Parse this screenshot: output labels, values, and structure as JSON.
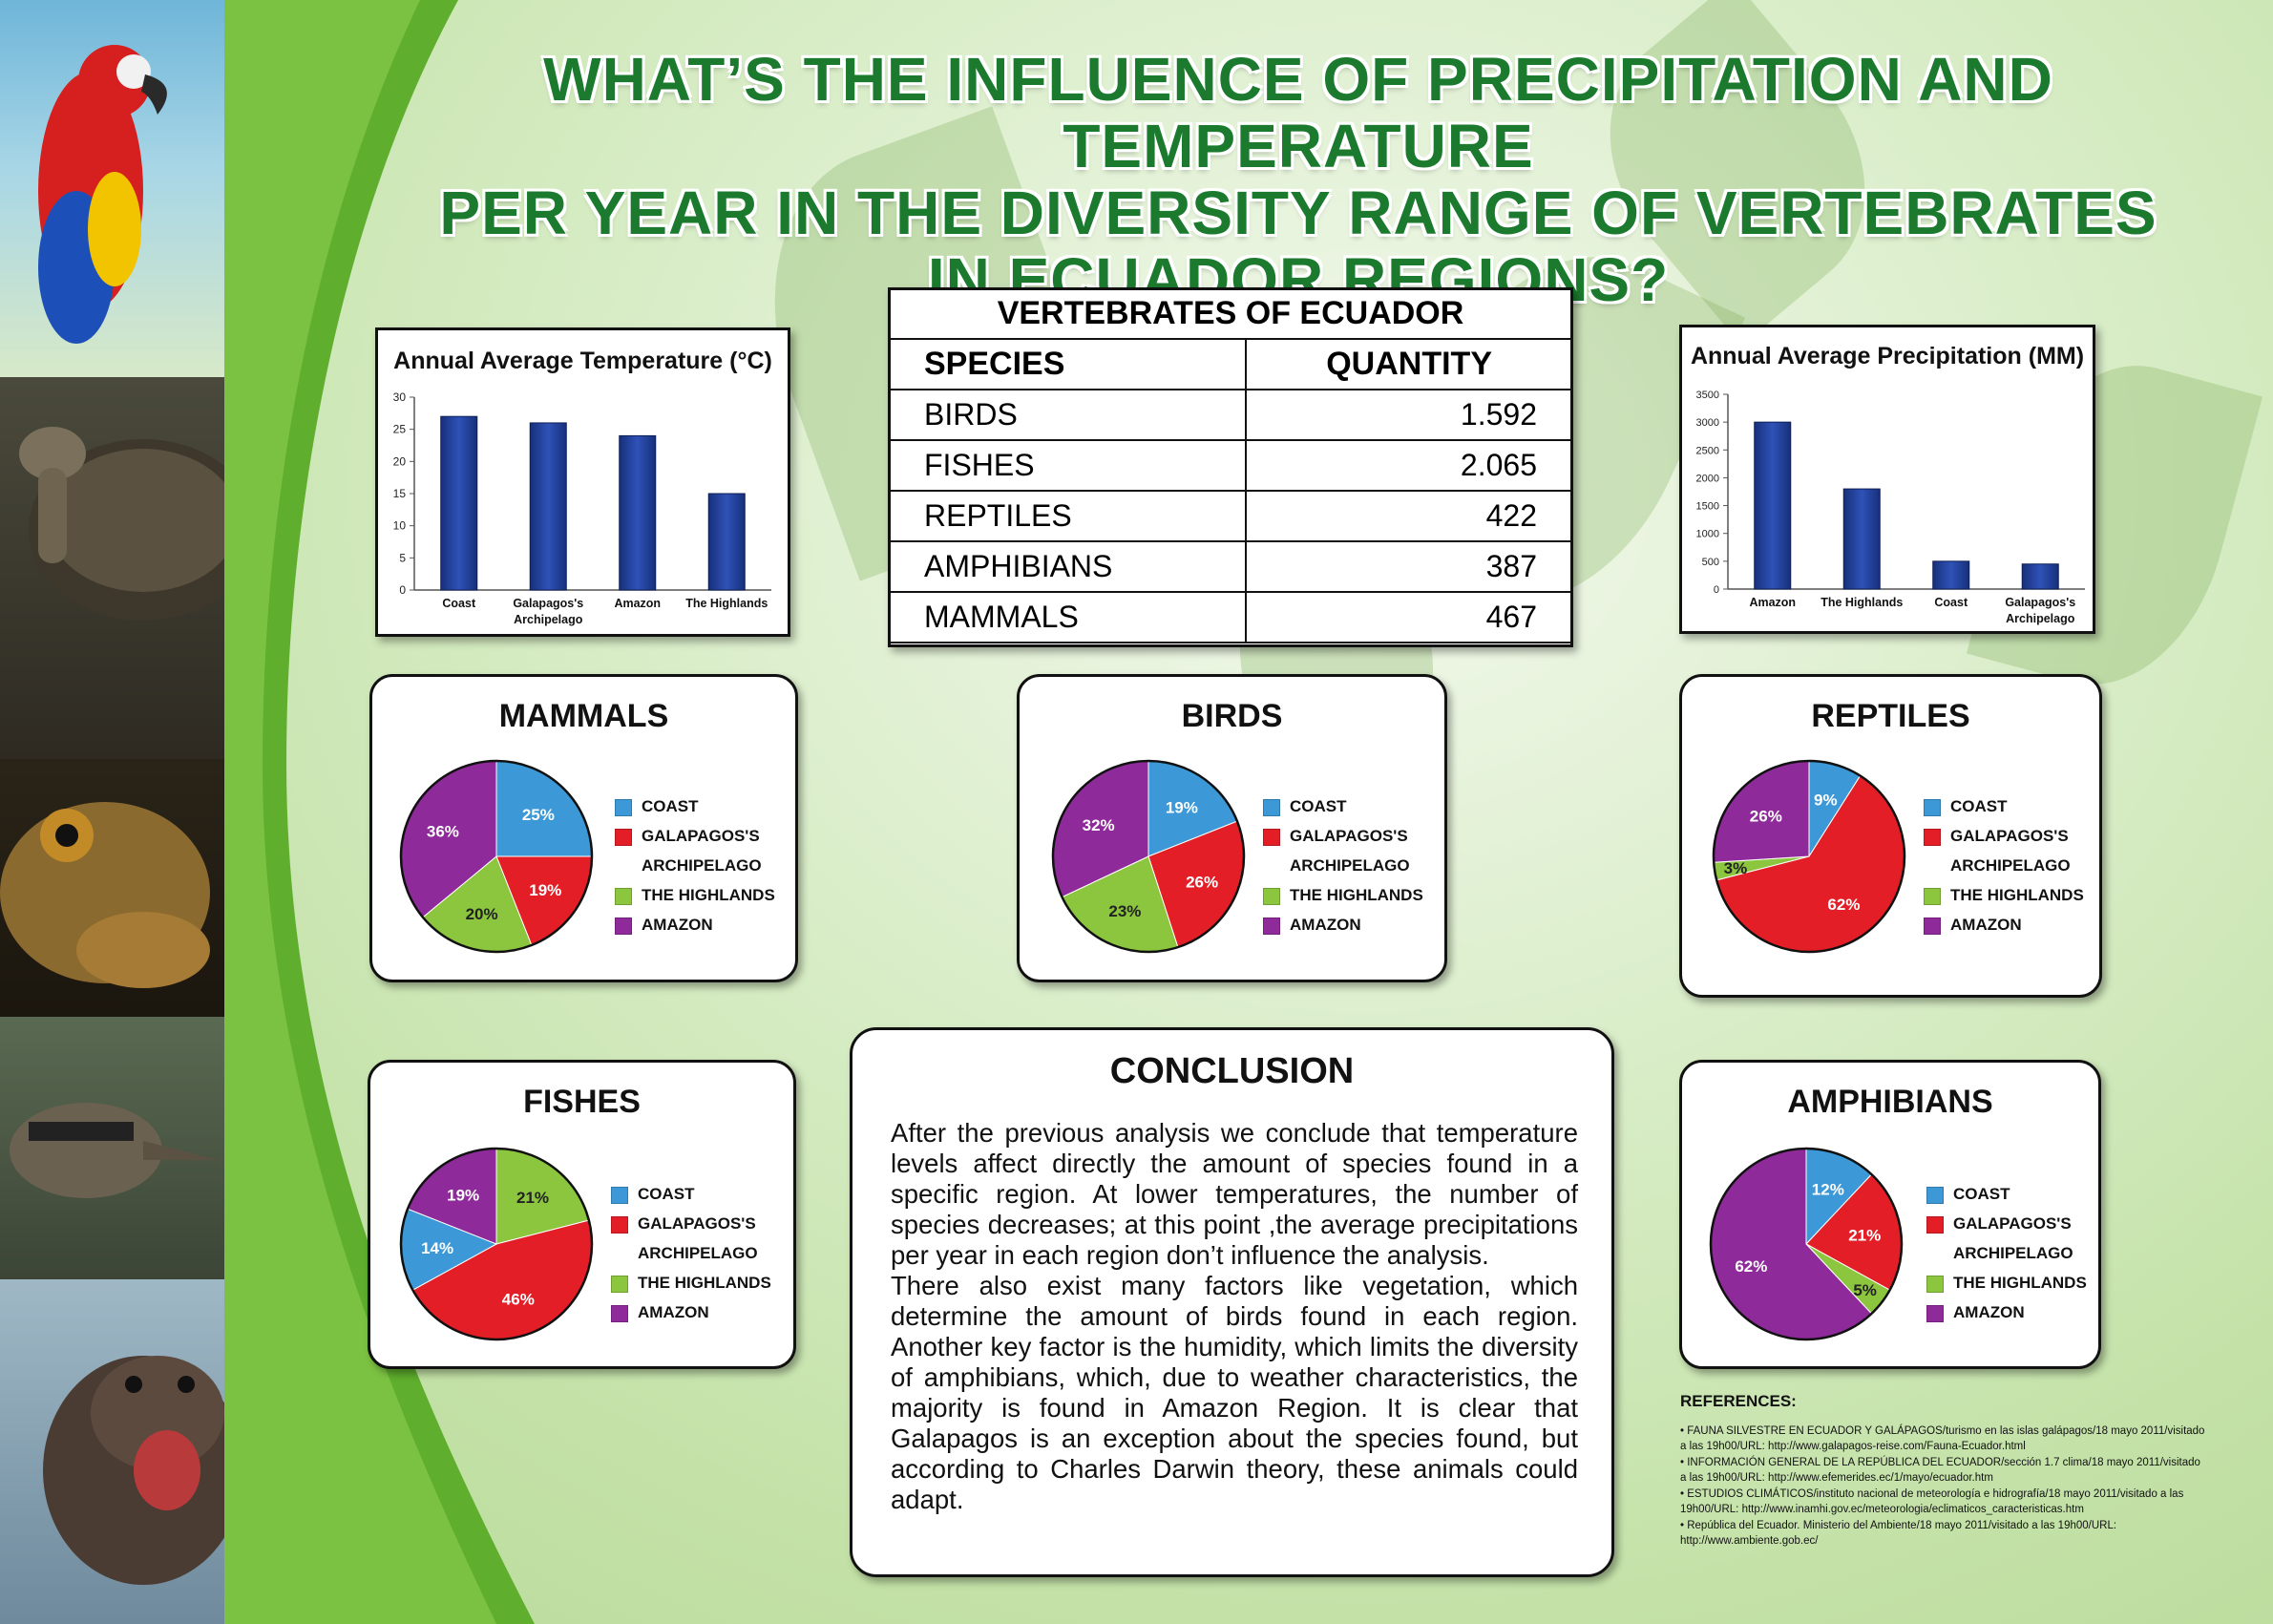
{
  "title_lines": [
    "WHAT’S THE INFLUENCE OF PRECIPITATION AND TEMPERATURE",
    "PER YEAR IN THE DIVERSITY RANGE OF VERTEBRATES",
    "IN ECUADOR REGIONS?"
  ],
  "table": {
    "title": "VERTEBRATES OF ECUADOR",
    "headers": [
      "SPECIES",
      "QUANTITY"
    ],
    "rows": [
      [
        "BIRDS",
        "1.592"
      ],
      [
        "FISHES",
        "2.065"
      ],
      [
        "REPTILES",
        "422"
      ],
      [
        "AMPHIBIANS",
        "387"
      ],
      [
        "MAMMALS",
        "467"
      ]
    ]
  },
  "pie_legend": [
    "COAST",
    "GALAPAGOS'S ARCHIPELAGO",
    "THE HIGHLANDS",
    "AMAZON"
  ],
  "colors": {
    "coast": "#3c98d6",
    "galapagos": "#e31e26",
    "highlands": "#8cc63f",
    "amazon": "#8e2a9a",
    "bar": "#1f3f9a",
    "title": "#1c7a2e"
  },
  "chart_data": [
    {
      "type": "bar",
      "title": "Annual Average Temperature (°C)",
      "categories": [
        "Coast",
        "Galapagos's Archipelago",
        "Amazon",
        "The Highlands"
      ],
      "values": [
        27,
        26,
        24,
        15
      ],
      "ylim": [
        0,
        30
      ],
      "yticks": [
        0,
        5,
        10,
        15,
        20,
        25,
        30
      ]
    },
    {
      "type": "bar",
      "title": "Annual Average Precipitation (MM)",
      "categories": [
        "Amazon",
        "The Highlands",
        "Coast",
        "Galapagos's Archipelago"
      ],
      "values": [
        3000,
        1800,
        500,
        450
      ],
      "ylim": [
        0,
        3500
      ],
      "yticks": [
        0,
        500,
        1000,
        1500,
        2000,
        2500,
        3000,
        3500
      ]
    },
    {
      "type": "pie",
      "title": "MAMMALS",
      "categories": [
        "COAST",
        "GALAPAGOS'S ARCHIPELAGO",
        "THE HIGHLANDS",
        "AMAZON"
      ],
      "values": [
        25,
        19,
        20,
        36
      ],
      "labels": [
        "25%",
        "19%",
        "20%",
        "36%"
      ]
    },
    {
      "type": "pie",
      "title": "BIRDS",
      "categories": [
        "COAST",
        "GALAPAGOS'S ARCHIPELAGO",
        "THE HIGHLANDS",
        "AMAZON"
      ],
      "values": [
        19,
        26,
        23,
        32
      ],
      "labels": [
        "19%",
        "26%",
        "23%",
        "32%"
      ]
    },
    {
      "type": "pie",
      "title": "REPTILES",
      "categories": [
        "COAST",
        "GALAPAGOS'S ARCHIPELAGO",
        "THE HIGHLANDS",
        "AMAZON"
      ],
      "values": [
        9,
        62,
        3,
        26
      ],
      "labels": [
        "9%",
        "62%",
        "3%",
        "26%"
      ]
    },
    {
      "type": "pie",
      "title": "FISHES",
      "categories": [
        "AMAZON",
        "GALAPAGOS'S ARCHIPELAGO",
        "COAST",
        "THE HIGHLANDS"
      ],
      "values": [
        19,
        46,
        14,
        21
      ],
      "labels": [
        "19%",
        "46%",
        "14%",
        "21%"
      ],
      "order_note": "clockwise from top: THE HIGHLANDS, GALAPAGOS'S ARCHIPELAGO, COAST, AMAZON"
    },
    {
      "type": "pie",
      "title": "AMPHIBIANS",
      "categories": [
        "COAST",
        "GALAPAGOS'S ARCHIPELAGO",
        "THE HIGHLANDS",
        "AMAZON"
      ],
      "values": [
        12,
        21,
        5,
        62
      ],
      "labels": [
        "12%",
        "21%",
        "5%",
        "62%"
      ]
    }
  ],
  "conclusion": {
    "heading": "CONCLUSION",
    "text": "After the previous analysis we conclude that temperature levels affect directly the amount of species found in a specific region. At lower temperatures, the number of species decreases; at this point ,the average precipitations per year in each region don’t influence the analysis.\nThere also exist many factors like vegetation, which determine the amount of birds found in each region. Another key factor is the humidity, which limits the diversity of amphibians, which, due to weather characteristics, the majority is found in Amazon Region. It is clear that Galapagos is an exception about the species found, but according to Charles Darwin theory, these animals could adapt."
  },
  "references": {
    "title": "REFERENCES:",
    "items": [
      "• FAUNA SILVESTRE EN ECUADOR Y GALÁPAGOS/turismo en las islas galápagos/18 mayo 2011/visitado a las 19h00/URL: http://www.galapagos-reise.com/Fauna-Ecuador.html",
      "• INFORMACIÓN GENERAL DE LA REPÚBLICA DEL ECUADOR/sección 1.7 clima/18 mayo 2011/visitado a las 19h00/URL: http://www.efemerides.ec/1/mayo/ecuador.htm",
      "• ESTUDIOS CLIMÁTICOS/instituto nacional de meteorología e hidrografía/18 mayo 2011/visitado a las 19h00/URL: http://www.inamhi.gov.ec/meteorologia/eclimaticos_caracteristicas.htm",
      "• República del Ecuador. Ministerio del Ambiente/18 mayo 2011/visitado a las 19h00/URL: http://www.ambiente.gob.ec/"
    ]
  }
}
